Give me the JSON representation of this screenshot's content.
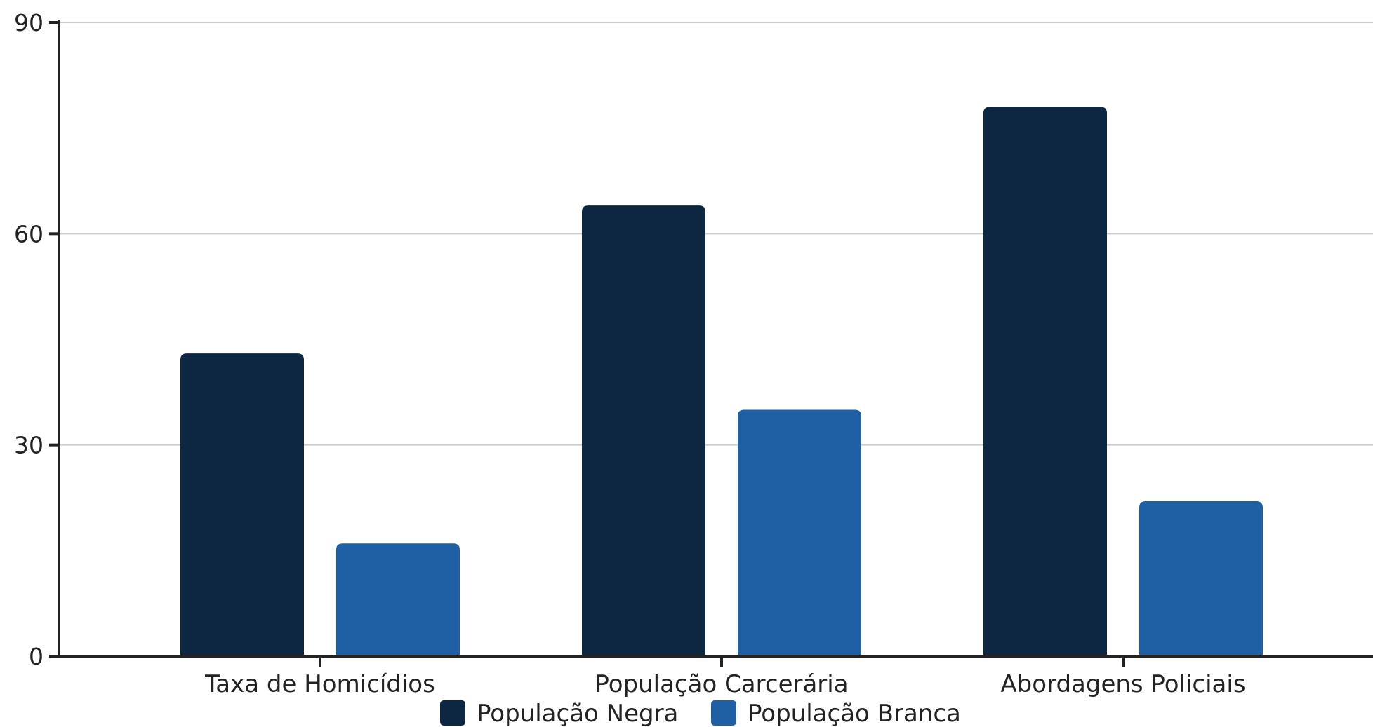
{
  "chart_data": {
    "type": "bar",
    "title": "",
    "xlabel": "",
    "ylabel": "",
    "categories": [
      "Taxa de Homicídios",
      "População Carcerária",
      "Abordagens Policiais"
    ],
    "series": [
      {
        "name": "População Negra",
        "values": [
          43,
          64,
          78
        ],
        "color": "#0d2642"
      },
      {
        "name": "População Branca",
        "values": [
          16,
          35,
          22
        ],
        "color": "#1f5fa3"
      }
    ],
    "ylim": [
      0,
      90
    ],
    "yticks": [
      0,
      30,
      60,
      90
    ],
    "grid": true,
    "legend": "bottom-center"
  }
}
